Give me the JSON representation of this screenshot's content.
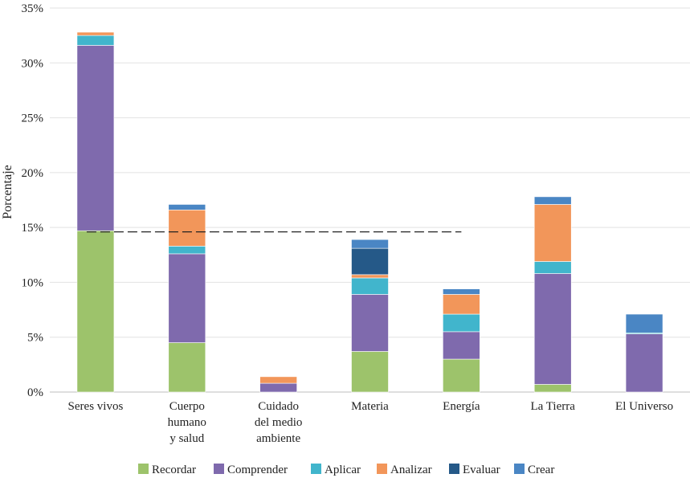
{
  "chart_data": {
    "type": "bar",
    "stacked": true,
    "title": "",
    "xlabel": "",
    "ylabel": "Porcentaje",
    "ylim": [
      0,
      35
    ],
    "yticks": [
      "0%",
      "5%",
      "10%",
      "15%",
      "20%",
      "25%",
      "30%",
      "35%"
    ],
    "grid": true,
    "legend_position": "bottom",
    "categories": [
      [
        "Seres vivos"
      ],
      [
        "Cuerpo",
        "humano",
        "y salud"
      ],
      [
        "Cuidado",
        "del medio",
        "ambiente"
      ],
      [
        "Materia"
      ],
      [
        "Energía"
      ],
      [
        "La Tierra"
      ],
      [
        "El Universo"
      ]
    ],
    "series": [
      {
        "name": "Recordar",
        "color": "#9dc36b",
        "values": [
          14.7,
          4.5,
          0.0,
          3.7,
          3.0,
          0.7,
          0.0
        ]
      },
      {
        "name": "Comprender",
        "color": "#7f6aad",
        "values": [
          16.9,
          8.1,
          0.8,
          5.2,
          2.5,
          10.1,
          5.3
        ]
      },
      {
        "name": "Aplicar",
        "color": "#41b5cc",
        "values": [
          0.9,
          0.7,
          0.0,
          1.5,
          1.6,
          1.1,
          0.1
        ]
      },
      {
        "name": "Analizar",
        "color": "#f2965a",
        "values": [
          0.3,
          3.3,
          0.6,
          0.3,
          1.8,
          5.2,
          0.0
        ]
      },
      {
        "name": "Evaluar",
        "color": "#255988",
        "values": [
          0.0,
          0.0,
          0.0,
          2.4,
          0.0,
          0.0,
          0.0
        ]
      },
      {
        "name": "Crear",
        "color": "#4a86c4",
        "values": [
          0.0,
          0.5,
          0.0,
          0.8,
          0.5,
          0.7,
          1.7
        ]
      }
    ],
    "reference_line": {
      "value": 14.6,
      "style": "dashed",
      "from_category": 0,
      "to_category": 4
    }
  }
}
